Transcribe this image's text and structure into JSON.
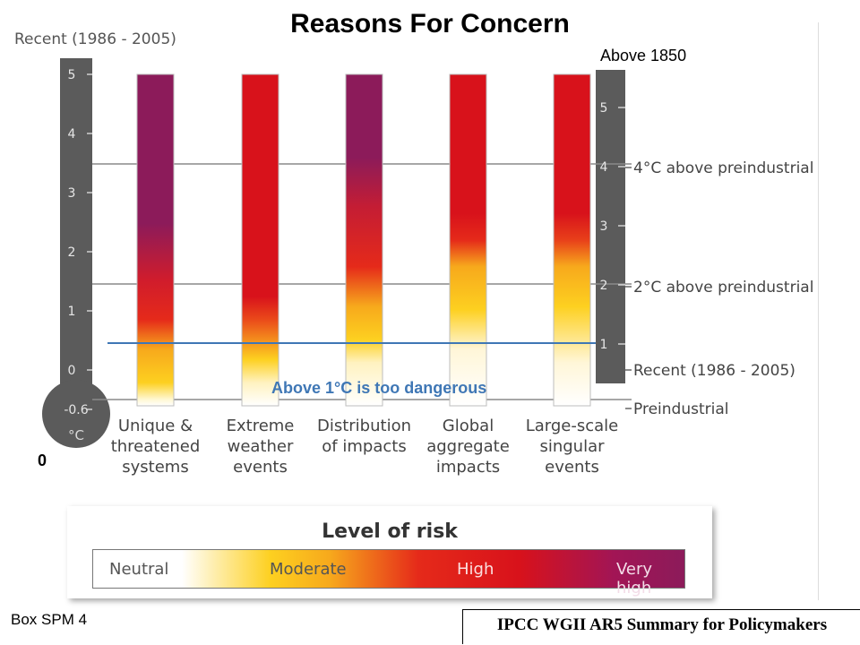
{
  "title": "Reasons For Concern",
  "top_left_label": "Recent (1986 - 2005)",
  "top_right_label": "Above 1850",
  "threshold_label": "Above 1°C is too dangerous",
  "left_axis": {
    "ticks": [
      "5",
      "4",
      "3",
      "2",
      "1",
      "0",
      "-0.6"
    ],
    "unit": "°C"
  },
  "right_axis": {
    "ticks": [
      "5",
      "4",
      "3",
      "2",
      "1"
    ],
    "annotations": [
      {
        "label": "4°C above preindustrial",
        "value": 4
      },
      {
        "label": "2°C above preindustrial",
        "value": 2
      },
      {
        "label": "Recent (1986 - 2005)",
        "value": 0.6
      },
      {
        "label": "Preindustrial",
        "value": 0
      }
    ]
  },
  "chart_data": {
    "type": "bar",
    "title": "Reasons For Concern",
    "categories": [
      "Unique & threatened systems",
      "Extreme weather events",
      "Distribution of impacts",
      "Global aggregate impacts",
      "Large-scale singular events"
    ],
    "category_lines": [
      [
        "Unique &",
        "threatened",
        "systems"
      ],
      [
        "Extreme",
        "weather",
        "events"
      ],
      [
        "Distribution",
        "of impacts"
      ],
      [
        "Global",
        "aggregate",
        "impacts"
      ],
      [
        "Large-scale",
        "singular",
        "events"
      ]
    ],
    "y_axis_left": {
      "range": [
        -0.6,
        5
      ],
      "label": "°C",
      "reference": "Recent (1986 - 2005)"
    },
    "y_axis_right": {
      "range": [
        0,
        5.6
      ],
      "reference": "Above 1850"
    },
    "risk_levels": [
      "Neutral",
      "Moderate",
      "High",
      "Very high"
    ],
    "risk_profiles_left_axis": [
      [
        {
          "level": "Neutral",
          "from": -0.6,
          "to": -0.3
        },
        {
          "level": "Moderate",
          "from": -0.3,
          "to": 0.9
        },
        {
          "level": "High",
          "from": 0.9,
          "to": 2.2
        },
        {
          "level": "Very high",
          "from": 2.2,
          "to": 5
        }
      ],
      [
        {
          "level": "Neutral",
          "from": -0.6,
          "to": 0.0
        },
        {
          "level": "Moderate",
          "from": 0.0,
          "to": 0.9
        },
        {
          "level": "High",
          "from": 0.9,
          "to": 5
        }
      ],
      [
        {
          "level": "Neutral",
          "from": -0.6,
          "to": 0.3
        },
        {
          "level": "Moderate",
          "from": 0.3,
          "to": 1.6
        },
        {
          "level": "High",
          "from": 1.6,
          "to": 3.0
        },
        {
          "level": "Very high",
          "from": 3.0,
          "to": 5
        }
      ],
      [
        {
          "level": "Neutral",
          "from": -0.6,
          "to": 0.5
        },
        {
          "level": "Moderate",
          "from": 0.5,
          "to": 2.0
        },
        {
          "level": "High",
          "from": 2.0,
          "to": 5
        }
      ],
      [
        {
          "level": "Neutral",
          "from": -0.6,
          "to": 0.3
        },
        {
          "level": "Moderate",
          "from": 0.3,
          "to": 2.2
        },
        {
          "level": "High",
          "from": 2.2,
          "to": 5
        }
      ]
    ],
    "threshold_line": {
      "value_left_axis": 0.45,
      "label": "Above 1°C is too dangerous",
      "color": "#3f77b5"
    },
    "grid": true
  },
  "legend": {
    "title": "Level of risk",
    "labels": [
      "Neutral",
      "Moderate",
      "High",
      "Very high"
    ]
  },
  "footer": {
    "left": "Box SPM 4",
    "right": "IPCC WGII AR5 Summary for Policymakers"
  },
  "colors": {
    "neutral": "#ffffff",
    "moderate": "#fdd020",
    "high": "#d8121b",
    "very_high": "#8c1b5a",
    "axis_gray": "#5b5b5b",
    "threshold": "#3f77b5"
  }
}
